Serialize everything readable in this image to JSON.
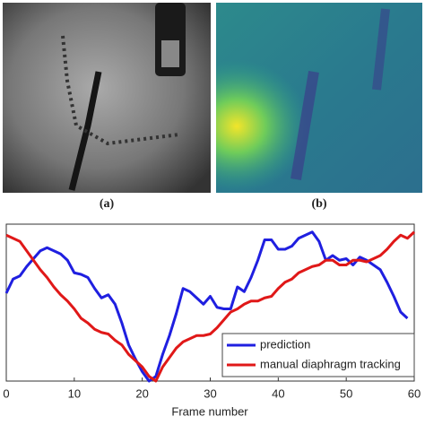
{
  "captions": {
    "a": "(a)",
    "b": "(b)"
  },
  "chart_data": {
    "type": "line",
    "xlabel": "Frame number",
    "x": [
      0,
      1,
      2,
      3,
      4,
      5,
      6,
      7,
      8,
      9,
      10,
      11,
      12,
      13,
      14,
      15,
      16,
      17,
      18,
      19,
      20,
      21,
      22,
      23,
      24,
      25,
      26,
      27,
      28,
      29,
      30,
      31,
      32,
      33,
      34,
      35,
      36,
      37,
      38,
      39,
      40,
      41,
      42,
      43,
      44,
      45,
      46,
      47,
      48,
      49,
      50,
      51,
      52,
      53,
      54,
      55,
      56,
      57,
      58,
      59,
      60
    ],
    "series": [
      {
        "name": "prediction",
        "color": "#1f1fe0",
        "values": [
          0.56,
          0.65,
          0.67,
          0.73,
          0.78,
          0.83,
          0.85,
          0.83,
          0.81,
          0.77,
          0.69,
          0.68,
          0.66,
          0.59,
          0.53,
          0.55,
          0.49,
          0.37,
          0.23,
          0.14,
          0.06,
          0,
          0.03,
          0.17,
          0.29,
          0.43,
          0.59,
          0.57,
          0.53,
          0.49,
          0.54,
          0.47,
          0.46,
          0.46,
          0.6,
          0.57,
          0.66,
          0.77,
          0.9,
          0.9,
          0.84,
          0.84,
          0.86,
          0.91,
          0.93,
          0.95,
          0.89,
          0.77,
          0.8,
          0.77,
          0.78,
          0.74,
          0.79,
          0.77,
          0.74,
          0.71,
          0.63,
          0.54,
          0.44,
          0.4,
          null
        ]
      },
      {
        "name": "manual diaphragm tracking",
        "color": "#e01818",
        "values": [
          0.93,
          0.91,
          0.89,
          0.83,
          0.77,
          0.71,
          0.66,
          0.6,
          0.55,
          0.51,
          0.46,
          0.4,
          0.37,
          0.33,
          0.31,
          0.3,
          0.26,
          0.23,
          0.17,
          0.13,
          0.09,
          0.03,
          0,
          0.09,
          0.15,
          0.21,
          0.25,
          0.27,
          0.29,
          0.29,
          0.3,
          0.34,
          0.39,
          0.44,
          0.46,
          0.49,
          0.51,
          0.51,
          0.53,
          0.54,
          0.59,
          0.63,
          0.65,
          0.69,
          0.71,
          0.73,
          0.74,
          0.77,
          0.77,
          0.74,
          0.74,
          0.77,
          0.77,
          0.76,
          0.78,
          0.8,
          0.84,
          0.89,
          0.93,
          0.91,
          0.95
        ]
      }
    ],
    "xlim": [
      0,
      60
    ],
    "xticks": [
      0,
      10,
      20,
      30,
      40,
      50,
      60
    ],
    "ylim": [
      0,
      1
    ],
    "legend": "lower right"
  }
}
